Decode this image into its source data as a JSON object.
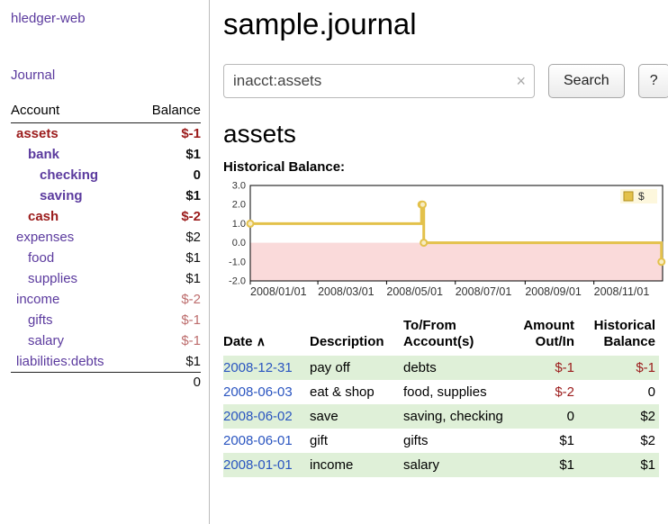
{
  "sidebar": {
    "app_title": "hledger-web",
    "nav": {
      "journal": "Journal"
    },
    "accounts": {
      "headers": {
        "account": "Account",
        "balance": "Balance"
      },
      "rows": [
        {
          "name": "assets",
          "balance": "$-1",
          "indent": 0,
          "bold": true,
          "name_color": "maroon",
          "balance_color": "maroon"
        },
        {
          "name": "bank",
          "balance": "$1",
          "indent": 1,
          "bold": true,
          "name_color": "purple",
          "balance_color": "black"
        },
        {
          "name": "checking",
          "balance": "0",
          "indent": 2,
          "bold": true,
          "name_color": "purple",
          "balance_color": "black"
        },
        {
          "name": "saving",
          "balance": "$1",
          "indent": 2,
          "bold": true,
          "name_color": "purple",
          "balance_color": "black"
        },
        {
          "name": "cash",
          "balance": "$-2",
          "indent": 1,
          "bold": true,
          "name_color": "maroon",
          "balance_color": "maroon"
        },
        {
          "name": "expenses",
          "balance": "$2",
          "indent": 0,
          "bold": false,
          "name_color": "purple",
          "balance_color": "black"
        },
        {
          "name": "food",
          "balance": "$1",
          "indent": 1,
          "bold": false,
          "name_color": "purple",
          "balance_color": "black"
        },
        {
          "name": "supplies",
          "balance": "$1",
          "indent": 1,
          "bold": false,
          "name_color": "purple",
          "balance_color": "black"
        },
        {
          "name": "income",
          "balance": "$-2",
          "indent": 0,
          "bold": false,
          "name_color": "purple",
          "balance_color": "rose"
        },
        {
          "name": "gifts",
          "balance": "$-1",
          "indent": 1,
          "bold": false,
          "name_color": "purple",
          "balance_color": "rose"
        },
        {
          "name": "salary",
          "balance": "$-1",
          "indent": 1,
          "bold": false,
          "name_color": "purple",
          "balance_color": "rose"
        },
        {
          "name": "liabilities:debts",
          "balance": "$1",
          "indent": 0,
          "bold": false,
          "name_color": "purple",
          "balance_color": "black"
        }
      ],
      "total": "0"
    }
  },
  "main": {
    "title": "sample.journal",
    "search": {
      "value": "inacct:assets",
      "clear_icon": "×",
      "search_button": "Search",
      "help_button": "?"
    },
    "account_heading": "assets",
    "chart_title": "Historical Balance:"
  },
  "chart_data": {
    "type": "line",
    "step": true,
    "title": "Historical Balance",
    "series": [
      {
        "name": "$",
        "points": [
          {
            "date": "2008-01-01",
            "value": 1
          },
          {
            "date": "2008-06-01",
            "value": 2
          },
          {
            "date": "2008-06-02",
            "value": 2
          },
          {
            "date": "2008-06-03",
            "value": 0
          },
          {
            "date": "2008-12-31",
            "value": -1
          }
        ]
      }
    ],
    "ylim": [
      -2,
      3
    ],
    "y_ticks": [
      "3.0",
      "2.0",
      "1.0",
      "0.0",
      "-1.0",
      "-2.0"
    ],
    "x_ticks": [
      "2008/01/01",
      "2008/03/01",
      "2008/05/01",
      "2008/07/01",
      "2008/09/01",
      "2008/11/01"
    ],
    "x_domain": [
      "2008-01-01",
      "2009-01-01"
    ],
    "legend": {
      "label": "$",
      "color": "#e3c14b",
      "position": "top-right"
    },
    "colors": {
      "line": "#e3c14b",
      "negative_region": "#fadada"
    },
    "grid": false
  },
  "register": {
    "headers": {
      "date": "Date",
      "sort_indicator": "∧",
      "description": "Description",
      "account_line1": "To/From",
      "account_line2": "Account(s)",
      "amount_line1": "Amount",
      "amount_line2": "Out/In",
      "balance_line1": "Historical",
      "balance_line2": "Balance"
    },
    "rows": [
      {
        "date": "2008-12-31",
        "description": "pay off",
        "accounts": "debts",
        "amount": "$-1",
        "amount_negative": true,
        "balance": "$-1",
        "balance_negative": true,
        "shaded": true
      },
      {
        "date": "2008-06-03",
        "description": "eat & shop",
        "accounts": "food, supplies",
        "amount": "$-2",
        "amount_negative": true,
        "balance": "0",
        "balance_negative": false,
        "shaded": false
      },
      {
        "date": "2008-06-02",
        "description": "save",
        "accounts": "saving, checking",
        "amount": "0",
        "amount_negative": false,
        "balance": "$2",
        "balance_negative": false,
        "shaded": true
      },
      {
        "date": "2008-06-01",
        "description": "gift",
        "accounts": "gifts",
        "amount": "$1",
        "amount_negative": false,
        "balance": "$2",
        "balance_negative": false,
        "shaded": false
      },
      {
        "date": "2008-01-01",
        "description": "income",
        "accounts": "salary",
        "amount": "$1",
        "amount_negative": false,
        "balance": "$1",
        "balance_negative": false,
        "shaded": true
      }
    ]
  },
  "colors": {
    "purple": "#5b3a9e",
    "maroon": "#9b1b1b",
    "rose": "#bd6d6d",
    "link_blue": "#2a55c0",
    "row_green": "#dff0d8"
  }
}
